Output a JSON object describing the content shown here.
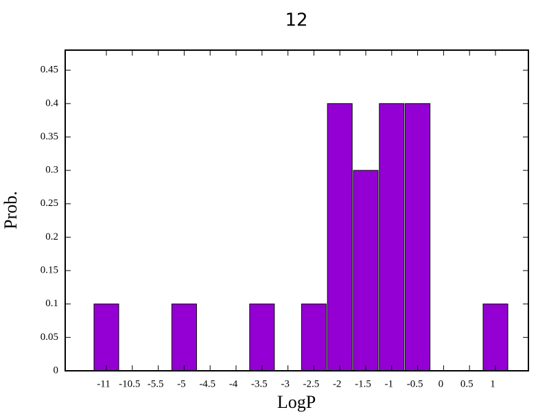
{
  "chart_data": {
    "type": "bar",
    "title": "12",
    "xlabel": "LogP",
    "ylabel": "Prob.",
    "categories": [
      "-11",
      "-10.5",
      "-5.5",
      "-5",
      "-4.5",
      "-4",
      "-3.5",
      "-3",
      "-2.5",
      "-2",
      "-1.5",
      "-1",
      "-0.5",
      "0",
      "0.5",
      "1"
    ],
    "values": [
      0.1,
      0,
      0,
      0.1,
      0,
      0,
      0.1,
      0,
      0.1,
      0.4,
      0.3,
      0.4,
      0.4,
      0,
      0,
      0.1
    ],
    "color": "#9400d3",
    "ylim": [
      0,
      0.48
    ],
    "yticks": [
      0,
      0.05,
      0.1,
      0.15,
      0.2,
      0.25,
      0.3,
      0.35,
      0.4,
      0.45
    ]
  }
}
